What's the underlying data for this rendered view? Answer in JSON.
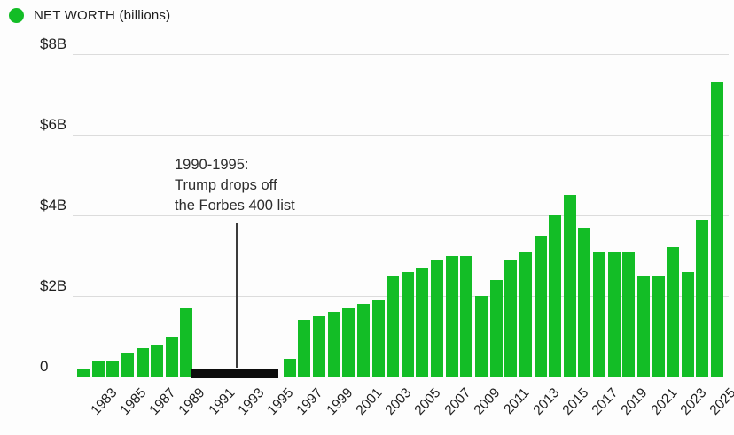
{
  "chart_data": {
    "type": "bar",
    "title": "NET WORTH (billions)",
    "xlabel": "",
    "ylabel": "",
    "ylim": [
      0,
      8
    ],
    "grid": true,
    "legend_position": "top-left",
    "bar_color": "#13bd26",
    "off_list_color": "#0d0d0d",
    "gridline_color": "#dcdcdc",
    "years": [
      1982,
      1983,
      1984,
      1985,
      1986,
      1987,
      1988,
      1989,
      1990,
      1991,
      1992,
      1993,
      1994,
      1995,
      1996,
      1997,
      1998,
      1999,
      2000,
      2001,
      2002,
      2003,
      2004,
      2005,
      2006,
      2007,
      2008,
      2009,
      2010,
      2011,
      2012,
      2013,
      2014,
      2015,
      2016,
      2017,
      2018,
      2019,
      2020,
      2021,
      2022,
      2023,
      2024,
      2025
    ],
    "values": [
      0.2,
      0.4,
      0.4,
      0.6,
      0.7,
      0.8,
      1.0,
      1.7,
      null,
      null,
      null,
      null,
      null,
      null,
      0.45,
      1.4,
      1.5,
      1.6,
      1.7,
      1.8,
      1.9,
      2.5,
      2.6,
      2.7,
      2.9,
      3.0,
      3.0,
      2.0,
      2.4,
      2.9,
      3.1,
      3.5,
      4.0,
      4.5,
      3.7,
      3.1,
      3.1,
      3.1,
      2.5,
      2.5,
      3.2,
      2.6,
      3.9,
      7.3
    ],
    "yticks": [
      {
        "value": 8,
        "label": "$8B"
      },
      {
        "value": 6,
        "label": "$6B"
      },
      {
        "value": 4,
        "label": "$4B"
      },
      {
        "value": 2,
        "label": "$2B"
      },
      {
        "value": 0,
        "label": "0"
      }
    ],
    "xticks": [
      "1983",
      "1985",
      "1987",
      "1989",
      "1991",
      "1993",
      "1995",
      "1997",
      "1999",
      "2001",
      "2003",
      "2005",
      "2007",
      "2009",
      "2011",
      "2013",
      "2015",
      "2017",
      "2019",
      "2021",
      "2023",
      "2025"
    ],
    "annotation": {
      "text_lines": [
        "1990-1995:",
        "Trump drops off",
        "the Forbes 400 list"
      ],
      "target_years": [
        1990,
        1995
      ]
    }
  }
}
